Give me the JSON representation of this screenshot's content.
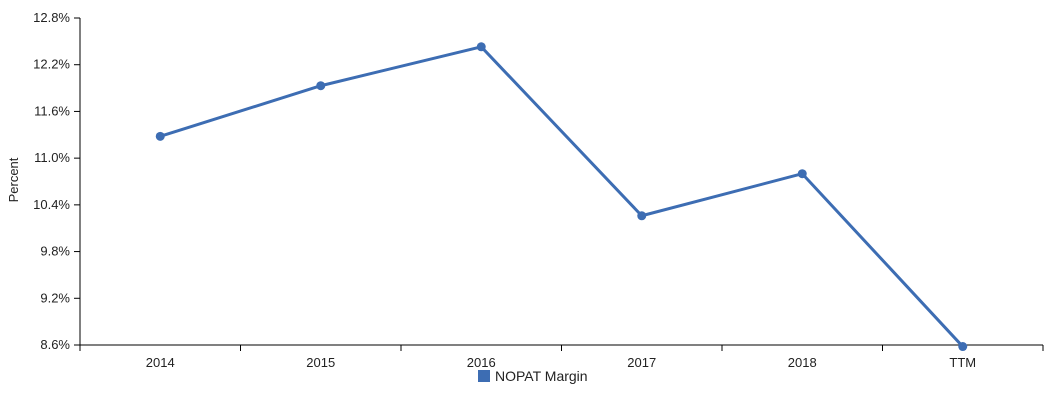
{
  "chart_data": {
    "type": "line",
    "categories": [
      "2014",
      "2015",
      "2016",
      "2017",
      "2018",
      "TTM"
    ],
    "series": [
      {
        "name": "NOPAT Margin",
        "values": [
          11.28,
          11.93,
          12.43,
          10.26,
          10.8,
          8.58
        ],
        "color": "#3d6db3"
      }
    ],
    "ylabel": "Percent",
    "ylim": [
      8.6,
      12.8
    ],
    "yticks": [
      8.6,
      9.2,
      9.8,
      10.4,
      11.0,
      11.6,
      12.2,
      12.8
    ],
    "ytick_labels": [
      "8.6%",
      "9.2%",
      "9.8%",
      "10.4%",
      "11.0%",
      "11.6%",
      "12.2%",
      "12.8%"
    ],
    "grid": false,
    "legend_position": "bottom-center"
  }
}
